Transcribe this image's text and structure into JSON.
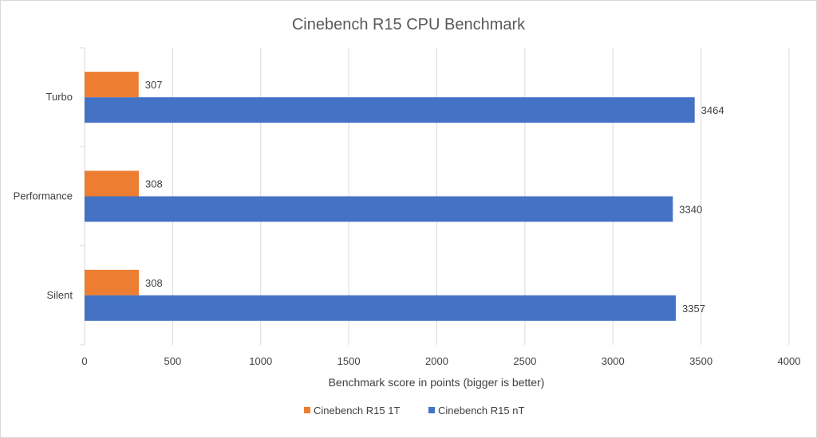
{
  "chart_data": {
    "type": "bar",
    "orientation": "horizontal",
    "title": "Cinebench R15 CPU Benchmark",
    "xlabel": "Benchmark score in points (bigger is better)",
    "ylabel": "",
    "categories": [
      "Turbo",
      "Performance",
      "Silent"
    ],
    "series": [
      {
        "name": "Cinebench R15 1T",
        "color": "#ed7d31",
        "values": [
          307,
          308,
          308
        ]
      },
      {
        "name": "Cinebench R15 nT",
        "color": "#4472c4",
        "values": [
          3464,
          3340,
          3357
        ]
      }
    ],
    "xlim": [
      0,
      4000
    ],
    "xticks": [
      0,
      500,
      1000,
      1500,
      2000,
      2500,
      3000,
      3500,
      4000
    ],
    "grid": true,
    "data_labels": true,
    "legend": "bottom"
  }
}
